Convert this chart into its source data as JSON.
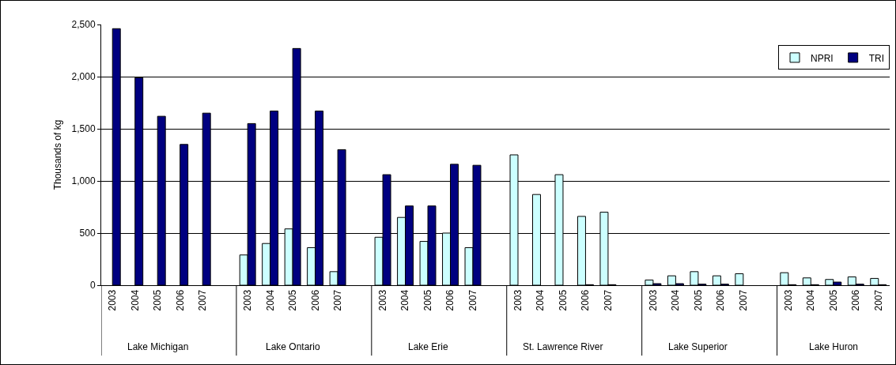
{
  "chart_data": {
    "type": "bar",
    "ylabel": "Thousands of kg",
    "categories": [
      "2003",
      "2004",
      "2005",
      "2006",
      "2007",
      null,
      "2003",
      "2004",
      "2005",
      "2006",
      "2007",
      null,
      "2003",
      "2004",
      "2005",
      "2006",
      "2007",
      null,
      "2003",
      "2004",
      "2005",
      "2006",
      "2007",
      null,
      "2003",
      "2004",
      "2005",
      "2006",
      "2007",
      null,
      "2003",
      "2004",
      "2005",
      "2006",
      "2007"
    ],
    "series": [
      {
        "name": "NPRI",
        "color": "#ccffff",
        "values": [
          null,
          null,
          null,
          null,
          null,
          null,
          290,
          400,
          540,
          360,
          130,
          null,
          460,
          650,
          420,
          500,
          360,
          null,
          1250,
          870,
          1060,
          660,
          700,
          null,
          50,
          90,
          130,
          90,
          110,
          null,
          120,
          70,
          55,
          80,
          65
        ]
      },
      {
        "name": "TRI",
        "color": "#000080",
        "values": [
          2460,
          1990,
          1620,
          1350,
          1650,
          null,
          1550,
          1670,
          2270,
          1670,
          1300,
          null,
          1060,
          760,
          760,
          1160,
          1150,
          null,
          null,
          null,
          null,
          5,
          5,
          null,
          15,
          15,
          10,
          10,
          null,
          null,
          5,
          5,
          30,
          10,
          5
        ]
      }
    ],
    "annotations": [
      "Lake Michigan",
      "Lake Ontario",
      "Lake Erie",
      "St. Lawrence River",
      "Lake Superior",
      "Lake Huron"
    ],
    "ylim": [
      0,
      2500
    ],
    "yticks": [
      0,
      500,
      {
        "value": 1000,
        "label": "1,000"
      },
      {
        "value": 1500,
        "label": "1,500"
      },
      {
        "value": 2000,
        "label": "2,000"
      },
      {
        "value": 2500,
        "label": "2,500"
      }
    ],
    "grid": "y",
    "legend": "top right"
  }
}
